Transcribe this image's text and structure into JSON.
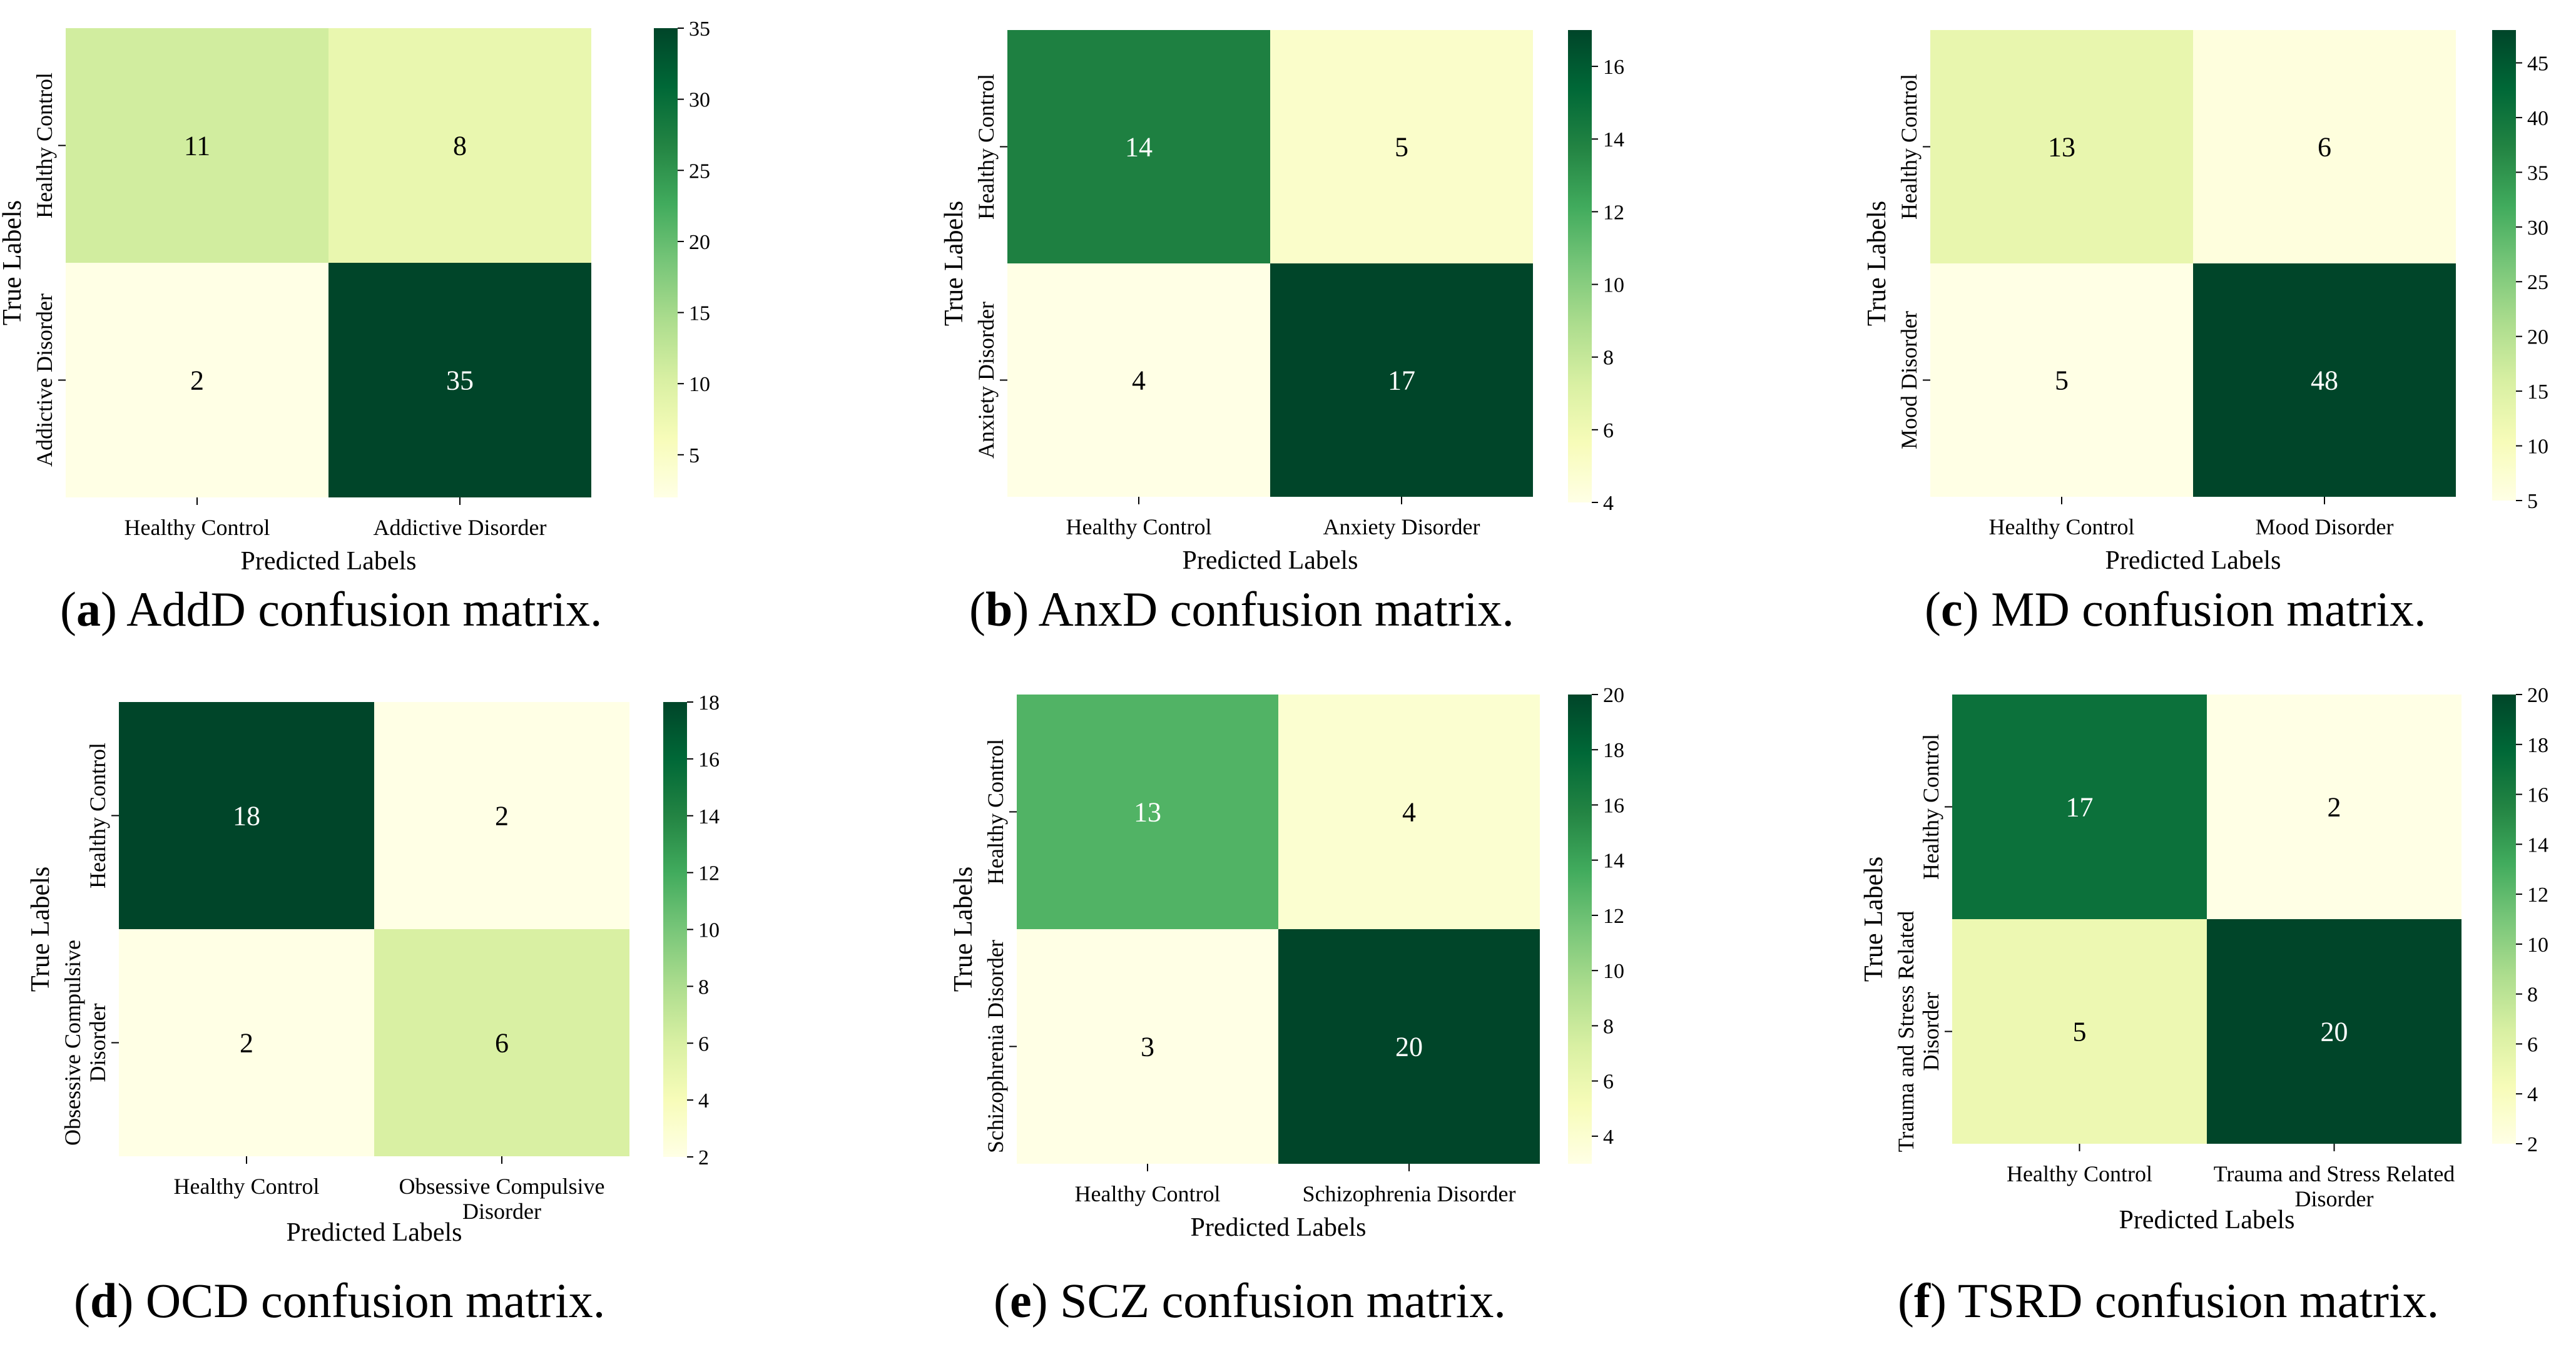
{
  "figure": {
    "colorscale": [
      "#ffffe5",
      "#f7fcb9",
      "#d9f0a3",
      "#addd8e",
      "#78c679",
      "#41ab5d",
      "#238443",
      "#006837",
      "#004529"
    ],
    "axis_labels": {
      "x": "Predicted Labels",
      "y": "True Labels"
    }
  },
  "chart_data": [
    {
      "type": "heatmap",
      "id": "a",
      "letter": "a",
      "caption": ") AddD confusion matrix.",
      "xlabel": "Predicted Labels",
      "ylabel": "True Labels",
      "x_categories": [
        [
          "Healthy Control"
        ],
        [
          "Addictive Disorder"
        ]
      ],
      "y_categories": [
        [
          "Healthy Control"
        ],
        [
          "Addictive Disorder"
        ]
      ],
      "values": [
        [
          11,
          8
        ],
        [
          2,
          35
        ]
      ],
      "colorbar": {
        "min": 2,
        "max": 35,
        "ticks": [
          5,
          10,
          15,
          20,
          25,
          30,
          35
        ]
      }
    },
    {
      "type": "heatmap",
      "id": "b",
      "letter": "b",
      "caption": ") AnxD confusion matrix.",
      "xlabel": "Predicted Labels",
      "ylabel": "True Labels",
      "x_categories": [
        [
          "Healthy Control"
        ],
        [
          "Anxiety Disorder"
        ]
      ],
      "y_categories": [
        [
          "Healthy Control"
        ],
        [
          "Anxiety Disorder"
        ]
      ],
      "values": [
        [
          14,
          5
        ],
        [
          4,
          17
        ]
      ],
      "colorbar": {
        "min": 4,
        "max": 17,
        "ticks": [
          4,
          6,
          8,
          10,
          12,
          14,
          16
        ]
      }
    },
    {
      "type": "heatmap",
      "id": "c",
      "letter": "c",
      "caption": ") MD confusion matrix.",
      "xlabel": "Predicted Labels",
      "ylabel": "True Labels",
      "x_categories": [
        [
          "Healthy Control"
        ],
        [
          "Mood Disorder"
        ]
      ],
      "y_categories": [
        [
          "Healthy Control"
        ],
        [
          "Mood Disorder"
        ]
      ],
      "values": [
        [
          13,
          6
        ],
        [
          5,
          48
        ]
      ],
      "colorbar": {
        "min": 5,
        "max": 48,
        "ticks": [
          5,
          10,
          15,
          20,
          25,
          30,
          35,
          40,
          45
        ]
      }
    },
    {
      "type": "heatmap",
      "id": "d",
      "letter": "d",
      "caption": ") OCD confusion matrix.",
      "xlabel": "Predicted Labels",
      "ylabel": "True Labels",
      "x_categories": [
        [
          "Healthy Control"
        ],
        [
          "Obsessive Compulsive",
          "Disorder"
        ]
      ],
      "y_categories": [
        [
          "Healthy Control"
        ],
        [
          "Obsessive Compulsive",
          "Disorder"
        ]
      ],
      "values": [
        [
          18,
          2
        ],
        [
          2,
          6
        ]
      ],
      "colorbar": {
        "min": 2,
        "max": 18,
        "ticks": [
          2,
          4,
          6,
          8,
          10,
          12,
          14,
          16,
          18
        ]
      }
    },
    {
      "type": "heatmap",
      "id": "e",
      "letter": "e",
      "caption": ") SCZ confusion matrix.",
      "xlabel": "Predicted Labels",
      "ylabel": "True Labels",
      "x_categories": [
        [
          "Healthy Control"
        ],
        [
          "Schizophrenia Disorder"
        ]
      ],
      "y_categories": [
        [
          "Healthy Control"
        ],
        [
          "Schizophrenia Disorder"
        ]
      ],
      "values": [
        [
          13,
          4
        ],
        [
          3,
          20
        ]
      ],
      "colorbar": {
        "min": 3,
        "max": 20,
        "ticks": [
          4,
          6,
          8,
          10,
          12,
          14,
          16,
          18,
          20
        ]
      }
    },
    {
      "type": "heatmap",
      "id": "f",
      "letter": "f",
      "caption": ") TSRD confusion matrix.",
      "xlabel": "Predicted Labels",
      "ylabel": "True Labels",
      "x_categories": [
        [
          "Healthy Control"
        ],
        [
          "Trauma and Stress Related",
          "Disorder"
        ]
      ],
      "y_categories": [
        [
          "Healthy Control"
        ],
        [
          "Trauma and Stress Related",
          "Disorder"
        ]
      ],
      "values": [
        [
          17,
          2
        ],
        [
          5,
          20
        ]
      ],
      "colorbar": {
        "min": 2,
        "max": 20,
        "ticks": [
          2,
          4,
          6,
          8,
          10,
          12,
          14,
          16,
          18,
          20
        ]
      }
    }
  ]
}
